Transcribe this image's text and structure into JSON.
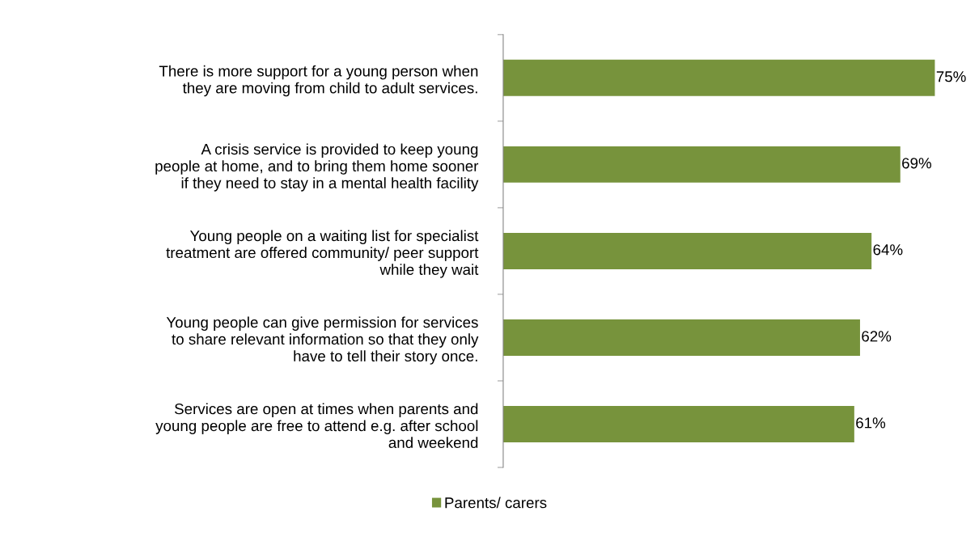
{
  "chart_data": {
    "type": "bar",
    "orientation": "horizontal",
    "categories": [
      "There is more support for a young person when\nthey are moving from child to adult services.",
      "A crisis service is provided to keep young\npeople at home, and to bring them home sooner\nif they need to stay in a mental health facility",
      "Young people on a waiting list for specialist\ntreatment are offered community/ peer support\nwhile they wait",
      "Young people can give permission for services\nto share relevant information so that they only\nhave to tell their story once.",
      "Services are open at times when parents and\nyoung people are free to attend e.g. after school\nand weekend"
    ],
    "series": [
      {
        "name": "Parents/ carers",
        "color": "#77933c",
        "values": [
          75,
          69,
          64,
          62,
          61
        ],
        "value_labels": [
          "75%",
          "69%",
          "64%",
          "62%",
          "61%"
        ]
      }
    ],
    "legend": "bottom",
    "grid": false,
    "tick_labels": "y"
  }
}
